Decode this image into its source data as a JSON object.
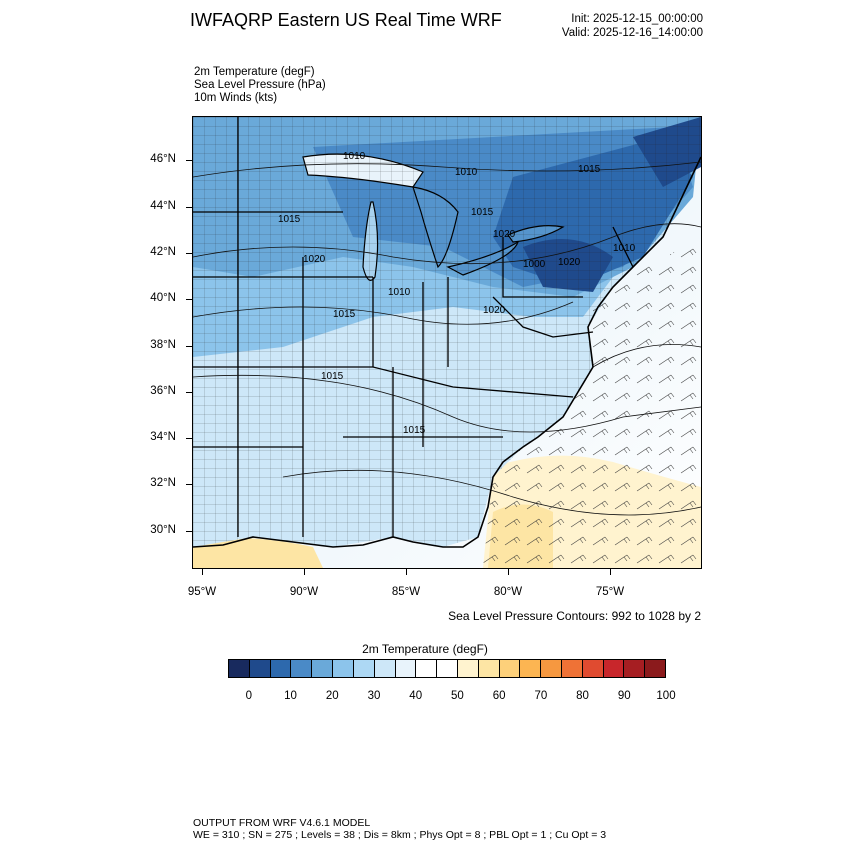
{
  "header": {
    "title": "IWFAQRP Eastern US Real Time WRF",
    "init": "Init: 2025-12-15_00:00:00",
    "valid": "Valid: 2025-12-16_14:00:00"
  },
  "fields": [
    "2m Temperature   (degF)",
    "Sea Level Pressure   (hPa)",
    "10m Winds   (kts)"
  ],
  "map": {
    "lat_labels": [
      "46°N",
      "44°N",
      "42°N",
      "40°N",
      "38°N",
      "36°N",
      "34°N",
      "32°N",
      "30°N"
    ],
    "lon_labels": [
      "95°W",
      "90°W",
      "85°W",
      "80°W",
      "75°W"
    ],
    "pressure_labels": [
      "1010",
      "1010",
      "1015",
      "1015",
      "1020",
      "1015",
      "1015",
      "1015",
      "1020",
      "1010",
      "1000",
      "1020",
      "1020",
      "1015",
      "1010"
    ],
    "contour_note": "Sea Level Pressure Contours: 992 to 1028 by 2"
  },
  "colorbar": {
    "title": "2m Temperature   (degF)",
    "colors": [
      "#182a5e",
      "#1f4a8c",
      "#2d69ad",
      "#4a8ac7",
      "#6aa9d9",
      "#8cc4eb",
      "#add8f4",
      "#cde7f8",
      "#e8f3fb",
      "#ffffff",
      "#ffffff",
      "#fff3cf",
      "#fde5a4",
      "#fdd07a",
      "#fcb552",
      "#f69840",
      "#ef7236",
      "#e04b30",
      "#c8262b",
      "#a61e22",
      "#8b1a1c"
    ],
    "tick_labels": [
      "0",
      "10",
      "20",
      "30",
      "40",
      "50",
      "60",
      "70",
      "80",
      "90",
      "100"
    ]
  },
  "footer": {
    "line1": "OUTPUT FROM WRF V4.6.1 MODEL",
    "line2": "WE = 310 ; SN = 275 ; Levels = 38 ; Dis = 8km ; Phys Opt = 8 ; PBL Opt = 1 ; Cu Opt = 3"
  }
}
